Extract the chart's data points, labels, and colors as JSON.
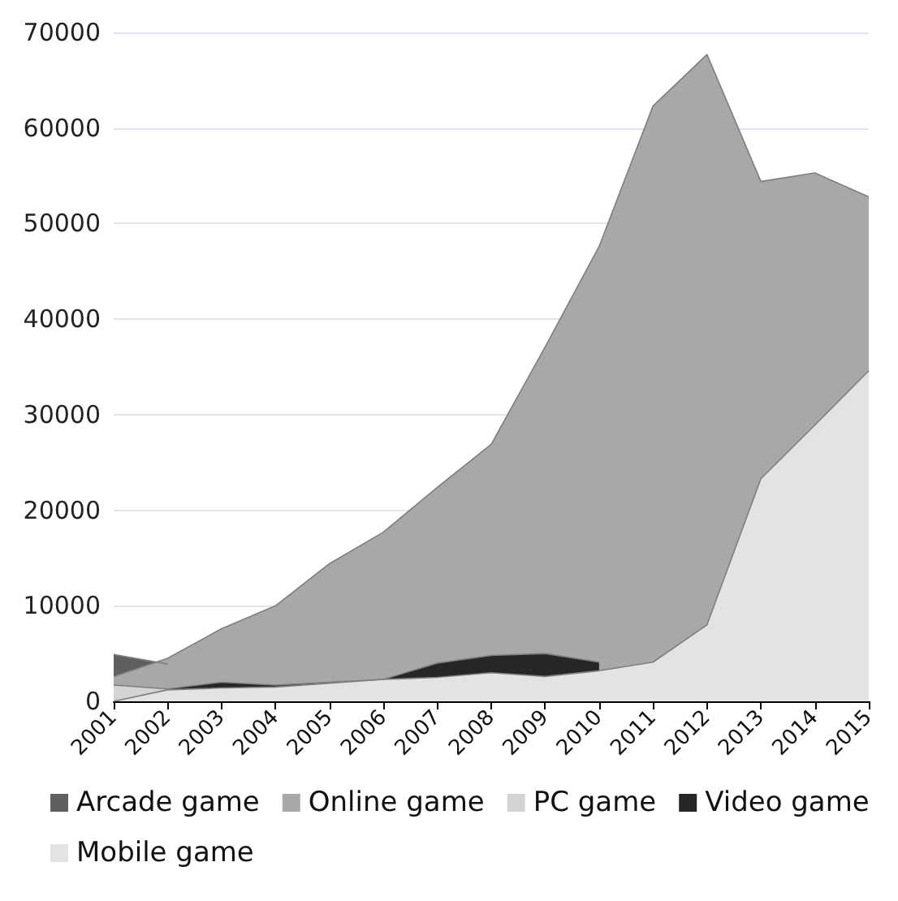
{
  "chart_data": {
    "type": "area",
    "categories": [
      "2001",
      "2002",
      "2003",
      "2004",
      "2005",
      "2006",
      "2007",
      "2008",
      "2009",
      "2010",
      "2011",
      "2012",
      "2013",
      "2014",
      "2015"
    ],
    "series": [
      {
        "name": "Arcade game",
        "color": "#5f5f5f",
        "values": [
          4900,
          3900,
          null,
          null,
          null,
          null,
          null,
          null,
          null,
          null,
          null,
          null,
          null,
          null,
          null
        ]
      },
      {
        "name": "Online game",
        "color": "#a8a8a8",
        "values": [
          2600,
          4500,
          7600,
          10000,
          14400,
          17700,
          22400,
          26900,
          37100,
          47600,
          62300,
          67700,
          54400,
          55300,
          52800
        ]
      },
      {
        "name": "PC game",
        "color": "#d4d4d4",
        "values": [
          1700,
          1300,
          null,
          null,
          null,
          null,
          null,
          null,
          null,
          null,
          null,
          null,
          null,
          null,
          null
        ]
      },
      {
        "name": "Video game",
        "color": "#262626",
        "values": [
          null,
          1300,
          2000,
          1700,
          2000,
          2300,
          4000,
          4800,
          5000,
          4100,
          null,
          null,
          null,
          null,
          null
        ]
      },
      {
        "name": "Mobile game",
        "color": "#e3e3e3",
        "values": [
          0,
          1200,
          1400,
          1500,
          1900,
          2300,
          2500,
          3000,
          2600,
          3200,
          4100,
          8000,
          23300,
          28900,
          34600
        ]
      }
    ],
    "ylim": [
      0,
      70000
    ],
    "yticks": [
      0,
      10000,
      20000,
      30000,
      40000,
      50000,
      60000,
      70000
    ],
    "grid": "y",
    "legend": "bottom"
  }
}
